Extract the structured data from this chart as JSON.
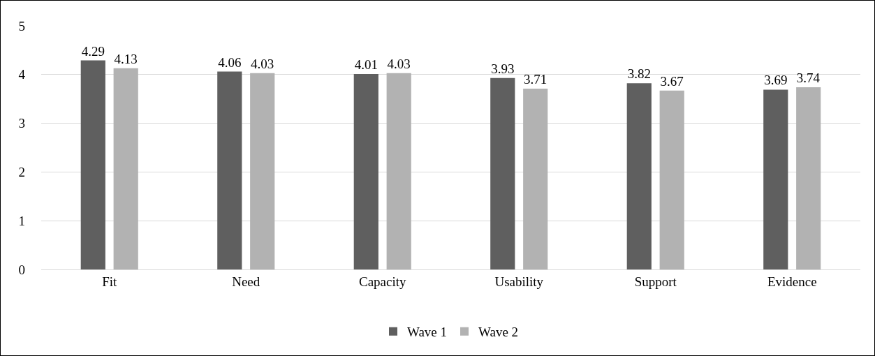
{
  "chart_data": {
    "type": "bar",
    "categories": [
      "Fit",
      "Need",
      "Capacity",
      "Usability",
      "Support",
      "Evidence"
    ],
    "series": [
      {
        "name": "Wave 1",
        "color": "#5f5f5f",
        "values": [
          4.29,
          4.06,
          4.01,
          3.93,
          3.82,
          3.69
        ]
      },
      {
        "name": "Wave 2",
        "color": "#b2b2b2",
        "values": [
          4.13,
          4.03,
          4.03,
          3.71,
          3.67,
          3.74
        ]
      }
    ],
    "ylim": [
      0,
      5
    ],
    "yticks": [
      0,
      1,
      2,
      3,
      4,
      5
    ],
    "grid": "y",
    "legend": "bottom",
    "data_labels": true
  }
}
